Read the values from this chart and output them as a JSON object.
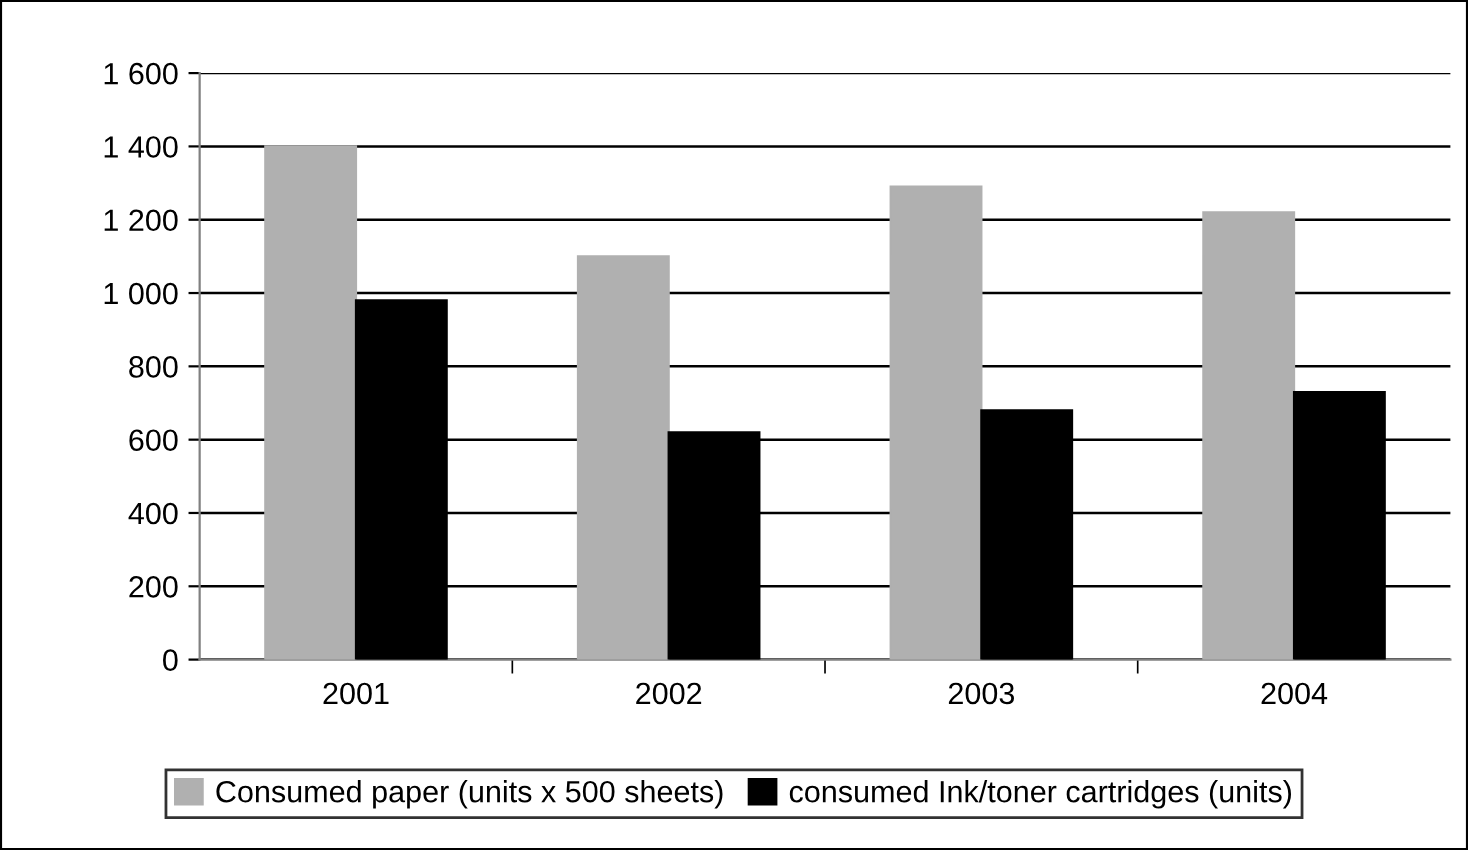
{
  "chart_data": {
    "type": "bar",
    "categories": [
      "2001",
      "2002",
      "2003",
      "2004"
    ],
    "series": [
      {
        "name": "Consumed paper (units x 500 sheets)",
        "color": "#b0b0b0",
        "values": [
          1400,
          1100,
          1290,
          1220
        ]
      },
      {
        "name": "consumed Ink/toner cartridges (units)",
        "color": "#000000",
        "values": [
          980,
          620,
          680,
          730
        ]
      }
    ],
    "ylim": [
      0,
      1600
    ],
    "yticks": [
      {
        "value": 0,
        "label": "0"
      },
      {
        "value": 200,
        "label": "200"
      },
      {
        "value": 400,
        "label": "400"
      },
      {
        "value": 600,
        "label": "600"
      },
      {
        "value": 800,
        "label": "800"
      },
      {
        "value": 1000,
        "label": "1 000"
      },
      {
        "value": 1200,
        "label": "1 200"
      },
      {
        "value": 1400,
        "label": "1 400"
      },
      {
        "value": 1600,
        "label": "1 600"
      }
    ],
    "grid": "y",
    "legend": "bottom"
  }
}
